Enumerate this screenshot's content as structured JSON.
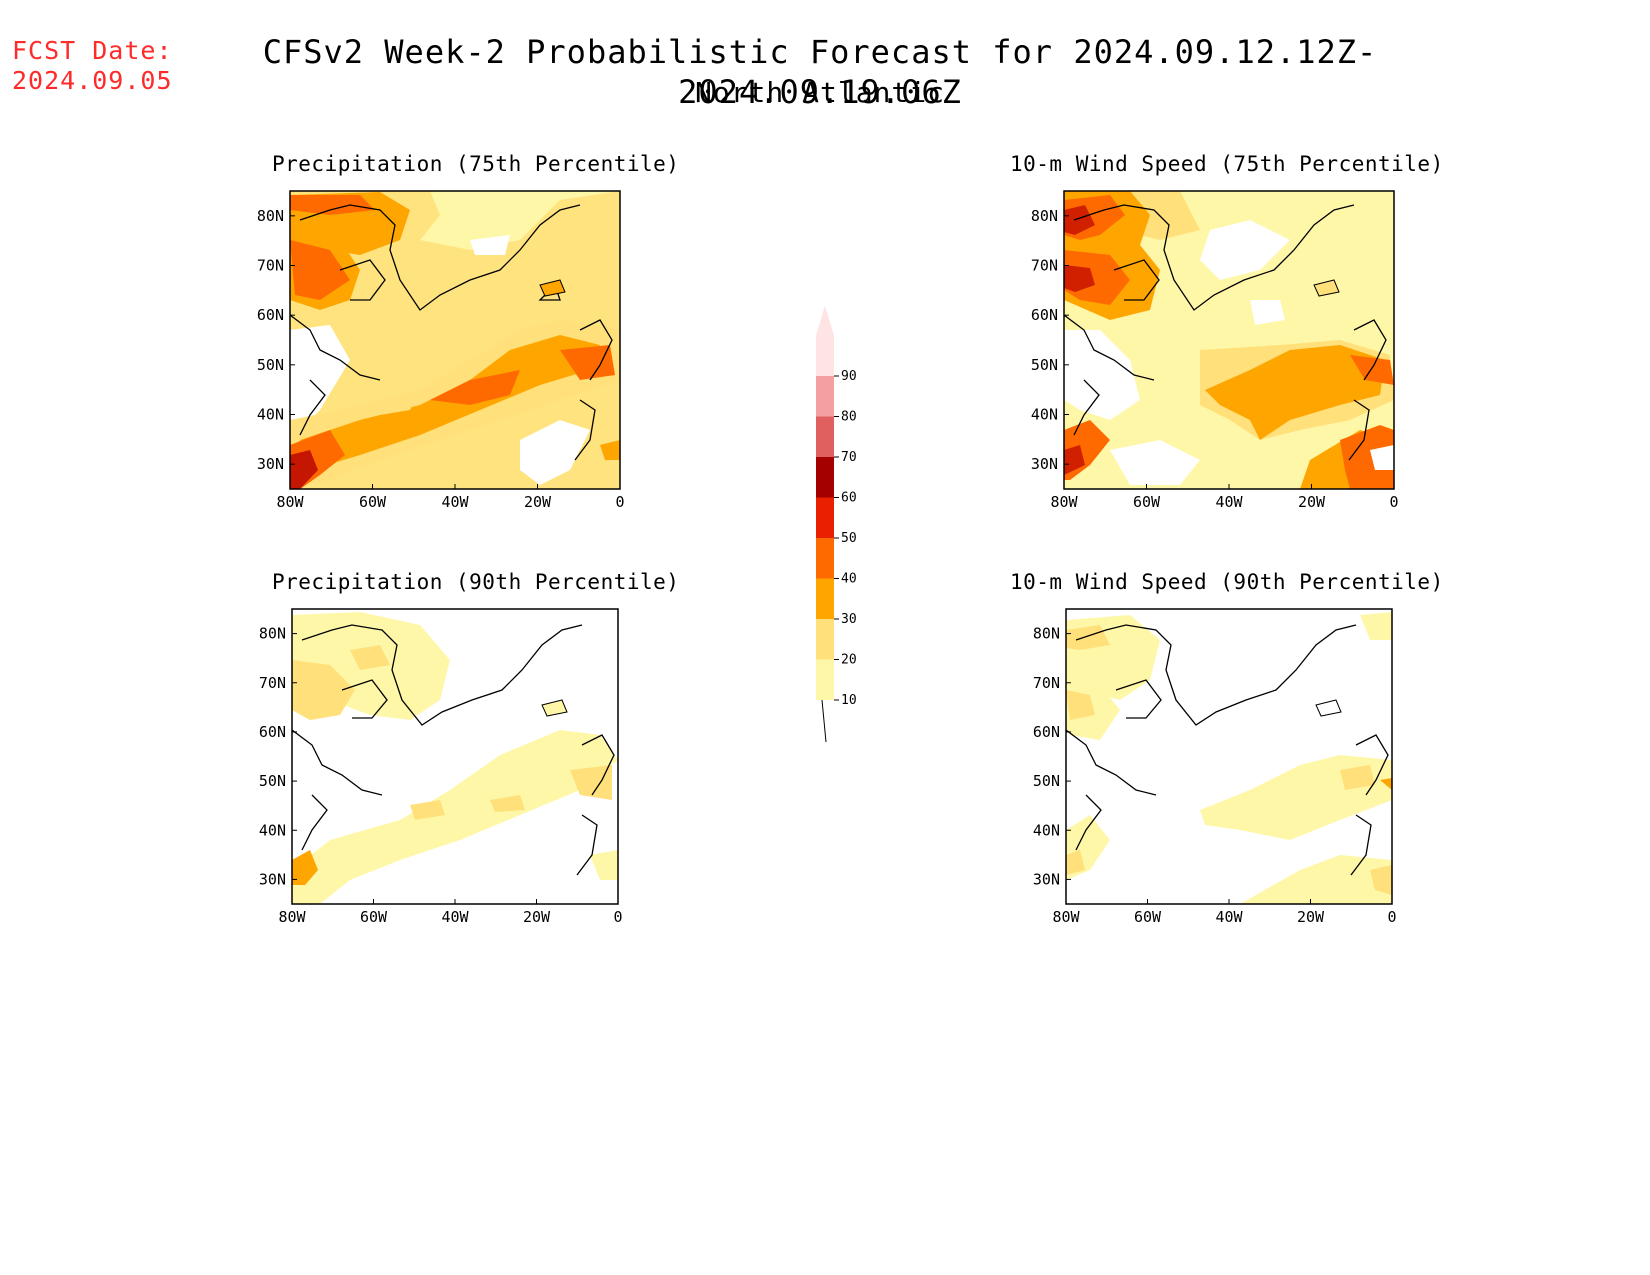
{
  "header": {
    "fcst_label": "FCST Date:",
    "fcst_date": "2024.09.05",
    "title": "CFSv2 Week-2 Probabilistic Forecast for 2024.09.12.12Z-2024.09.19.06Z",
    "subtitle": "North Atlantic"
  },
  "panels": [
    {
      "id": "precip75",
      "title": "Precipitation (75th Percentile)"
    },
    {
      "id": "wind75",
      "title": "10-m Wind Speed (75th Percentile)"
    },
    {
      "id": "precip90",
      "title": "Precipitation (90th Percentile)"
    },
    {
      "id": "wind90",
      "title": "10-m Wind Speed (90th Percentile)"
    }
  ],
  "axes": {
    "lat_labels": [
      "80N",
      "70N",
      "60N",
      "50N",
      "40N",
      "30N"
    ],
    "lon_labels": [
      "80W",
      "60W",
      "40W",
      "20W",
      "0"
    ]
  },
  "colorbar": {
    "levels": [
      "10",
      "20",
      "30",
      "40",
      "50",
      "60",
      "70",
      "80",
      "90"
    ],
    "colors": [
      "#fff7a8",
      "#ffe07a",
      "#ffa500",
      "#ff6a00",
      "#e82000",
      "#a50000",
      "#e06060",
      "#f4a0a0",
      "#ffe4e4"
    ]
  }
}
